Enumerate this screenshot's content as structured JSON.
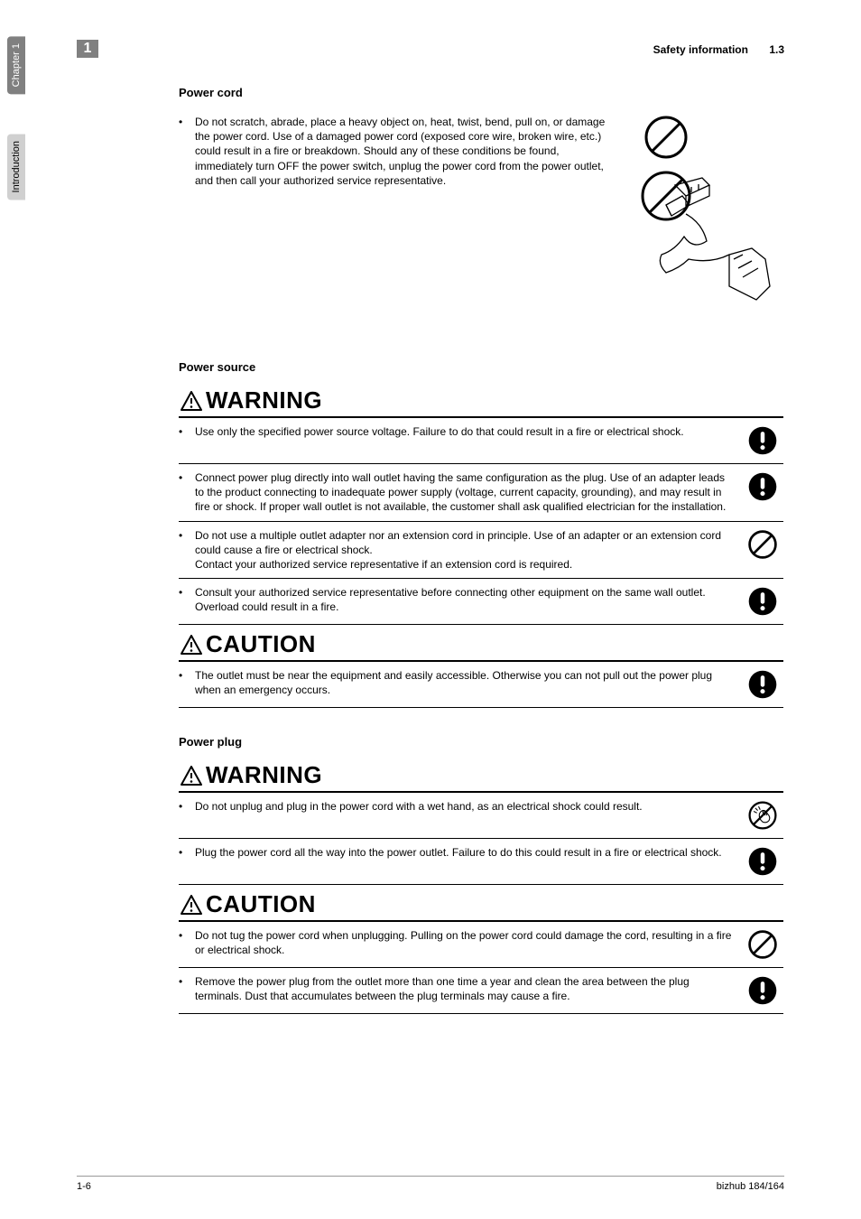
{
  "sideTabs": {
    "chapter": "Chapter 1",
    "intro": "Introduction"
  },
  "pageNumberBadge": "1",
  "header": {
    "title": "Safety information",
    "section": "1.3"
  },
  "sections": [
    {
      "title": "Power cord",
      "blocks": [
        {
          "type": "plain",
          "items": [
            {
              "text": "Do not scratch, abrade, place a heavy object on, heat, twist, bend, pull on, or damage the power cord. Use of a damaged power cord (exposed core wire, broken wire, etc.) could result in a fire or breakdown. Should any of these conditions be found, immediately turn OFF the power switch, unplug the power cord from the power outlet, and then call your authorized service representative.",
              "icon": "prohibit-plus-cord"
            }
          ]
        }
      ]
    },
    {
      "title": "Power source",
      "blocks": [
        {
          "type": "warning",
          "label": "WARNING",
          "items": [
            {
              "text": "Use only the specified power source voltage. Failure to do that could result in a fire or electrical shock.",
              "icon": "mandatory"
            },
            {
              "text": "Connect power plug directly into wall outlet having the same configuration as the plug. Use of an adapter leads to the product connecting to inadequate power supply (voltage, current capacity, grounding), and may result in fire or shock. If proper wall outlet is not available, the customer shall ask qualified electrician for the installation.",
              "icon": "mandatory"
            },
            {
              "text": "Do not use a multiple outlet adapter nor an extension cord in principle. Use of an adapter or an extension cord could cause a fire or electrical shock.\nContact your authorized service representative if an extension cord is required.",
              "icon": "prohibit"
            },
            {
              "text": "Consult your authorized service representative before connecting other equipment on the same wall outlet. Overload could result in a fire.",
              "icon": "mandatory"
            }
          ]
        },
        {
          "type": "caution",
          "label": "CAUTION",
          "items": [
            {
              "text": "The outlet must be near the equipment and easily accessible. Otherwise you can not pull out the power plug when an emergency occurs.",
              "icon": "mandatory"
            }
          ]
        }
      ]
    },
    {
      "title": "Power plug",
      "blocks": [
        {
          "type": "warning",
          "label": "WARNING",
          "items": [
            {
              "text": "Do not unplug and plug in the power cord with a wet hand, as an electrical shock could result.",
              "icon": "wethand"
            },
            {
              "text": "Plug the power cord all the way into the power outlet. Failure to do this could result in a fire or electrical shock.",
              "icon": "mandatory"
            }
          ]
        },
        {
          "type": "caution",
          "label": "CAUTION",
          "items": [
            {
              "text": "Do not tug the power cord when unplugging. Pulling on the power cord could damage the cord, resulting in a fire or electrical shock.",
              "icon": "prohibit"
            },
            {
              "text": "Remove the power plug from the outlet more than one time a year and clean the area between the plug terminals. Dust that accumulates between the plug terminals may cause a fire.",
              "icon": "mandatory"
            }
          ]
        }
      ]
    }
  ],
  "footer": {
    "left": "1-6",
    "right": "bizhub 184/164"
  },
  "icons": {
    "prohibit_color": "#000000",
    "mandatory_color": "#000000"
  }
}
